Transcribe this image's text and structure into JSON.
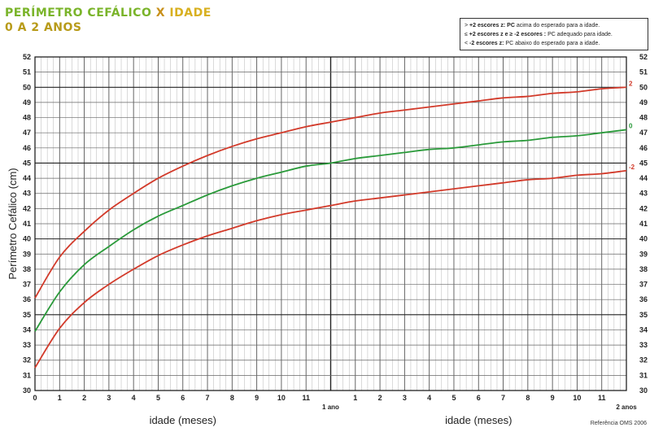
{
  "title": {
    "line1_colored": [
      "PERÍMETRO CEFÁLICO ",
      "X ",
      "IDADE"
    ],
    "line1_colors": [
      "#7ab42a",
      "#c8901a",
      "#d8b020"
    ],
    "line2": "0 A 2 ANOS",
    "line2_color": "#b89b1a"
  },
  "legend": {
    "items": [
      {
        "prefix": "> ",
        "bold": "+2 escores z: PC",
        "rest": " acima do esperado para a idade."
      },
      {
        "prefix": "≤ ",
        "bold": "+2 escores z e ≥ -2 escores :",
        "rest": " PC adequado para idade."
      },
      {
        "prefix": "< ",
        "bold": "-2 escores z:",
        "rest": " PC abaixo do esperado para a idade."
      }
    ]
  },
  "reference": "Referência OMS 2006",
  "chart_data": {
    "type": "line",
    "ylabel": "Perímetro Cefálico (cm)",
    "xlabel_left": "idade (meses)",
    "xlabel_right": "idade (meses)",
    "xlim": [
      0,
      24
    ],
    "ylim": [
      30,
      52
    ],
    "x_ticks": [
      "0",
      "1",
      "2",
      "3",
      "4",
      "5",
      "6",
      "7",
      "8",
      "9",
      "10",
      "11",
      "1 ano",
      "1",
      "2",
      "3",
      "4",
      "5",
      "6",
      "7",
      "8",
      "9",
      "10",
      "11",
      "2 anos"
    ],
    "y_ticks": [
      30,
      31,
      32,
      33,
      34,
      35,
      36,
      37,
      38,
      39,
      40,
      41,
      42,
      43,
      44,
      45,
      46,
      47,
      48,
      49,
      50,
      51,
      52
    ],
    "grid": true,
    "x": [
      0,
      1,
      2,
      3,
      4,
      5,
      6,
      7,
      8,
      9,
      10,
      11,
      12,
      13,
      14,
      15,
      16,
      17,
      18,
      19,
      20,
      21,
      22,
      23,
      24
    ],
    "series": [
      {
        "name": "2",
        "color": "#d23a2a",
        "values": [
          36.1,
          38.8,
          40.5,
          41.9,
          43.0,
          44.0,
          44.8,
          45.5,
          46.1,
          46.6,
          47.0,
          47.4,
          47.7,
          48.0,
          48.3,
          48.5,
          48.7,
          48.9,
          49.1,
          49.3,
          49.4,
          49.6,
          49.7,
          49.9,
          50.0
        ]
      },
      {
        "name": "0",
        "color": "#2a9a3a",
        "values": [
          33.9,
          36.5,
          38.3,
          39.5,
          40.6,
          41.5,
          42.2,
          42.9,
          43.5,
          44.0,
          44.4,
          44.8,
          45.0,
          45.3,
          45.5,
          45.7,
          45.9,
          46.0,
          46.2,
          46.4,
          46.5,
          46.7,
          46.8,
          47.0,
          47.2
        ]
      },
      {
        "name": "-2",
        "color": "#d23a2a",
        "values": [
          31.5,
          34.1,
          35.8,
          37.0,
          38.0,
          38.9,
          39.6,
          40.2,
          40.7,
          41.2,
          41.6,
          41.9,
          42.2,
          42.5,
          42.7,
          42.9,
          43.1,
          43.3,
          43.5,
          43.7,
          43.9,
          44.0,
          44.2,
          44.3,
          44.5
        ]
      }
    ]
  }
}
